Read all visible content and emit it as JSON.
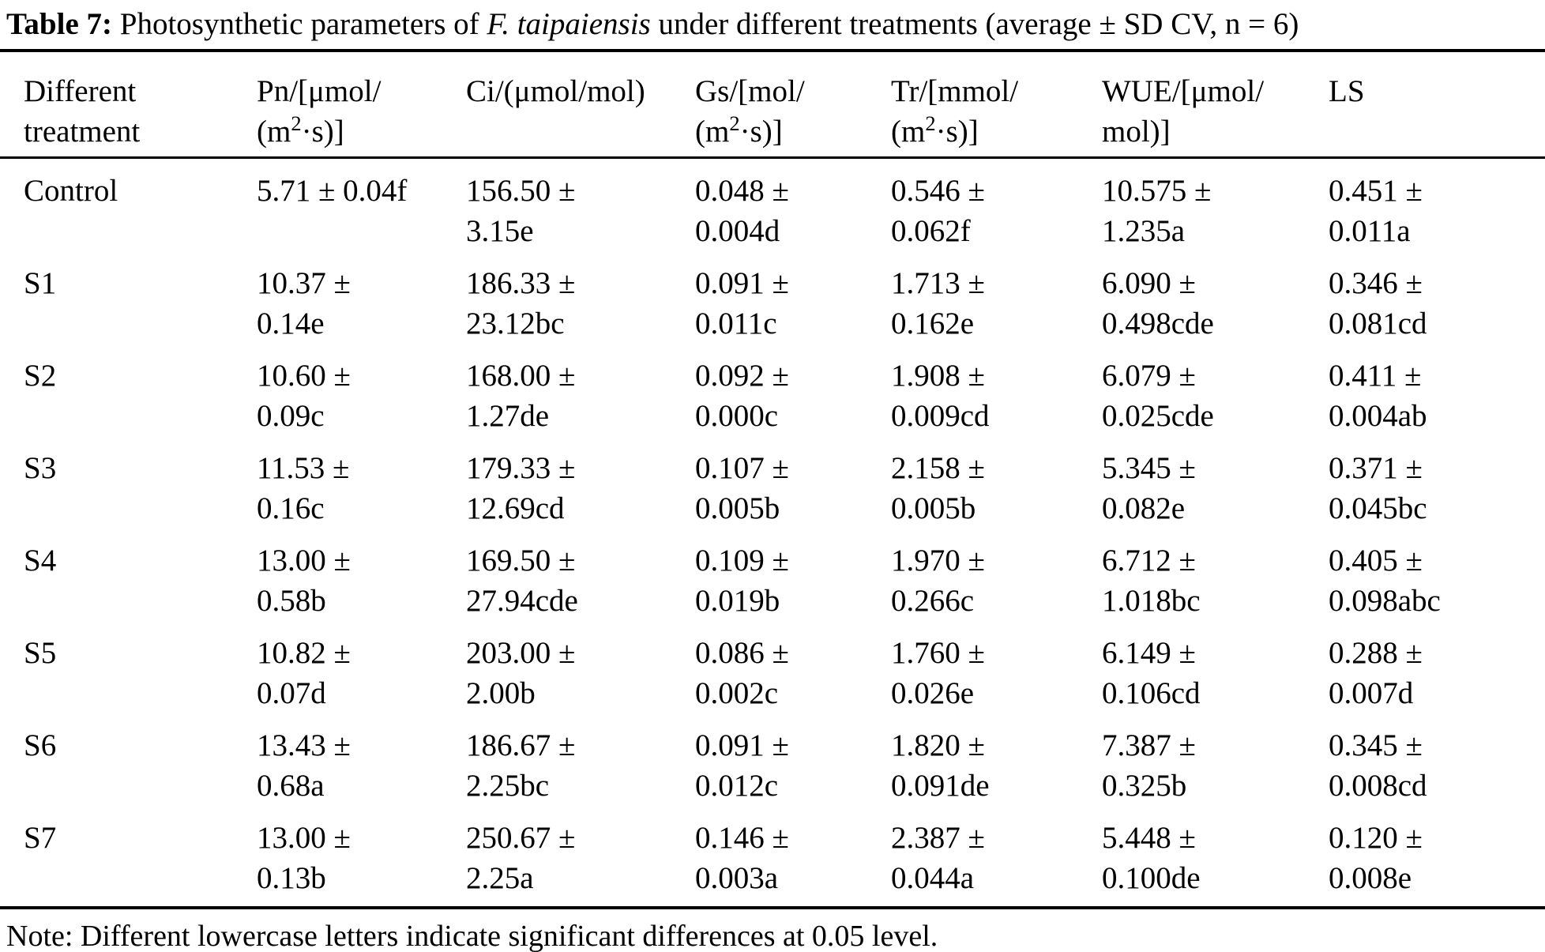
{
  "caption": {
    "label": "Table 7:",
    "text_before_species": " Photosynthetic parameters of ",
    "species": "F. taipaiensis",
    "text_after_species": " under different treatments (average ± SD CV, n = 6)"
  },
  "table": {
    "columns": {
      "treatment": {
        "line1": "Different",
        "line2": "treatment"
      },
      "pn": {
        "line1": "Pn/[μmol/",
        "line2_pre": "(m",
        "line2_sup": "2",
        "line2_post": "·s)]"
      },
      "ci": {
        "line1": "Ci/(μmol/mol)"
      },
      "gs": {
        "line1": "Gs/[mol/",
        "line2_pre": "(m",
        "line2_sup": "2",
        "line2_post": "·s)]"
      },
      "tr": {
        "line1": "Tr/[mmol/",
        "line2_pre": "(m",
        "line2_sup": "2",
        "line2_post": "·s)]"
      },
      "wue": {
        "line1": "WUE/[μmol/",
        "line2": "mol)]"
      },
      "ls": {
        "line1": "LS"
      }
    },
    "rows": [
      {
        "treatment": "Control",
        "pn": "5.71 ± 0.04f",
        "ci": "156.50 ±\n3.15e",
        "gs": "0.048 ±\n0.004d",
        "tr": "0.546 ±\n0.062f",
        "wue": "10.575 ±\n1.235a",
        "ls": "0.451 ±\n0.011a"
      },
      {
        "treatment": "S1",
        "pn": "10.37 ±\n0.14e",
        "ci": "186.33 ±\n23.12bc",
        "gs": "0.091 ±\n0.011c",
        "tr": "1.713 ±\n0.162e",
        "wue": "6.090 ±\n0.498cde",
        "ls": "0.346 ±\n0.081cd"
      },
      {
        "treatment": "S2",
        "pn": "10.60 ±\n0.09c",
        "ci": "168.00 ±\n1.27de",
        "gs": "0.092 ±\n0.000c",
        "tr": "1.908 ±\n0.009cd",
        "wue": "6.079 ±\n0.025cde",
        "ls": "0.411 ±\n0.004ab"
      },
      {
        "treatment": "S3",
        "pn": "11.53 ±\n0.16c",
        "ci": "179.33 ±\n12.69cd",
        "gs": "0.107 ±\n0.005b",
        "tr": "2.158 ±\n0.005b",
        "wue": "5.345 ±\n0.082e",
        "ls": "0.371 ±\n0.045bc"
      },
      {
        "treatment": "S4",
        "pn": "13.00 ±\n0.58b",
        "ci": "169.50 ±\n27.94cde",
        "gs": "0.109 ±\n0.019b",
        "tr": "1.970 ±\n0.266c",
        "wue": "6.712 ±\n1.018bc",
        "ls": "0.405 ±\n0.098abc"
      },
      {
        "treatment": "S5",
        "pn": "10.82 ±\n0.07d",
        "ci": "203.00 ±\n2.00b",
        "gs": "0.086 ±\n0.002c",
        "tr": "1.760 ±\n0.026e",
        "wue": "6.149 ±\n0.106cd",
        "ls": "0.288 ±\n0.007d"
      },
      {
        "treatment": "S6",
        "pn": "13.43 ±\n0.68a",
        "ci": "186.67 ±\n2.25bc",
        "gs": "0.091 ±\n0.012c",
        "tr": "1.820 ±\n0.091de",
        "wue": "7.387 ±\n0.325b",
        "ls": "0.345 ±\n0.008cd"
      },
      {
        "treatment": "S7",
        "pn": "13.00 ±\n0.13b",
        "ci": "250.67 ±\n2.25a",
        "gs": "0.146 ±\n0.003a",
        "tr": "2.387 ±\n0.044a",
        "wue": "5.448 ±\n0.100de",
        "ls": "0.120 ±\n0.008e"
      }
    ]
  },
  "note": "Note: Different lowercase letters indicate significant differences at 0.05 level."
}
